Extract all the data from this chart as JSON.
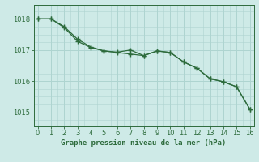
{
  "title": "Graphe pression niveau de la mer (hPa)",
  "background_color": "#ceeae7",
  "grid_color": "#aed4d0",
  "line_color": "#2d6b3c",
  "xlim": [
    -0.3,
    16.3
  ],
  "ylim": [
    1014.55,
    1018.45
  ],
  "xticks": [
    0,
    1,
    2,
    3,
    4,
    5,
    6,
    7,
    8,
    9,
    10,
    11,
    12,
    13,
    14,
    15,
    16
  ],
  "yticks": [
    1015,
    1016,
    1017,
    1018
  ],
  "series1_x": [
    0,
    1,
    2,
    3,
    4,
    5,
    6,
    7,
    8,
    9,
    10,
    11,
    12,
    13,
    14,
    15,
    16
  ],
  "series1_y": [
    1018.0,
    1018.0,
    1017.75,
    1017.35,
    1017.1,
    1016.97,
    1016.92,
    1016.87,
    1016.82,
    1016.97,
    1016.92,
    1016.62,
    1016.42,
    1016.08,
    1015.98,
    1015.82,
    1015.1
  ],
  "series2_x": [
    0,
    1,
    2,
    3,
    4,
    5,
    6,
    7,
    8,
    9,
    10,
    11,
    12,
    13,
    14,
    15,
    16
  ],
  "series2_y": [
    1018.0,
    1018.0,
    1017.72,
    1017.28,
    1017.08,
    1016.97,
    1016.93,
    1017.0,
    1016.82,
    1016.97,
    1016.92,
    1016.62,
    1016.42,
    1016.08,
    1015.98,
    1015.82,
    1015.1
  ]
}
